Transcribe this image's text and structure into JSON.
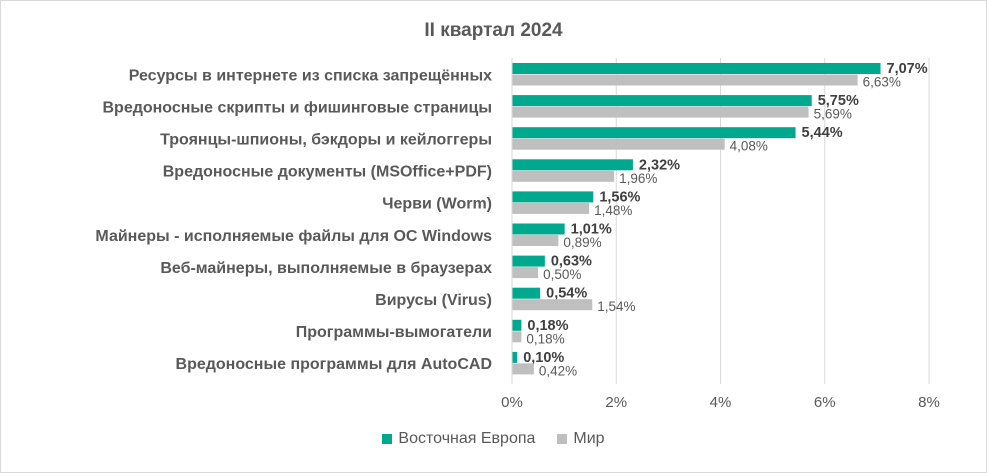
{
  "chart_data": {
    "type": "bar",
    "orientation": "horizontal",
    "title": "II квартал 2024",
    "categories": [
      "Ресурсы в интернете из списка запрещённых",
      "Вредоносные скрипты и фишинговые страницы",
      "Троянцы-шпионы, бэкдоры и кейлоггеры",
      "Вредоносные документы (MSOffice+PDF)",
      "Черви (Worm)",
      "Майнеры - исполняемые файлы для ОС Windows",
      "Веб-майнеры, выполняемые в браузерах",
      "Вирусы (Virus)",
      "Программы-вымогатели",
      "Вредоносные программы для AutoCAD"
    ],
    "series": [
      {
        "name": "Восточная Европа",
        "color": "#00a88e",
        "values": [
          7.07,
          5.75,
          5.44,
          2.32,
          1.56,
          1.01,
          0.63,
          0.54,
          0.18,
          0.1
        ],
        "labels": [
          "7,07%",
          "5,75%",
          "5,44%",
          "2,32%",
          "1,56%",
          "1,01%",
          "0,63%",
          "0,54%",
          "0,18%",
          "0,10%"
        ]
      },
      {
        "name": "Мир",
        "color": "#bfbfbf",
        "values": [
          6.63,
          5.69,
          4.08,
          1.96,
          1.48,
          0.89,
          0.5,
          1.54,
          0.18,
          0.42
        ],
        "labels": [
          "6,63%",
          "5,69%",
          "4,08%",
          "1,96%",
          "1,48%",
          "0,89%",
          "0,50%",
          "1,54%",
          "0,18%",
          "0,42%"
        ]
      }
    ],
    "xlim": [
      0,
      8
    ],
    "xticks": [
      0,
      2,
      4,
      6,
      8
    ],
    "xtick_labels": [
      "0%",
      "2%",
      "4%",
      "6%",
      "8%"
    ],
    "grid": true,
    "legend_position": "bottom"
  }
}
